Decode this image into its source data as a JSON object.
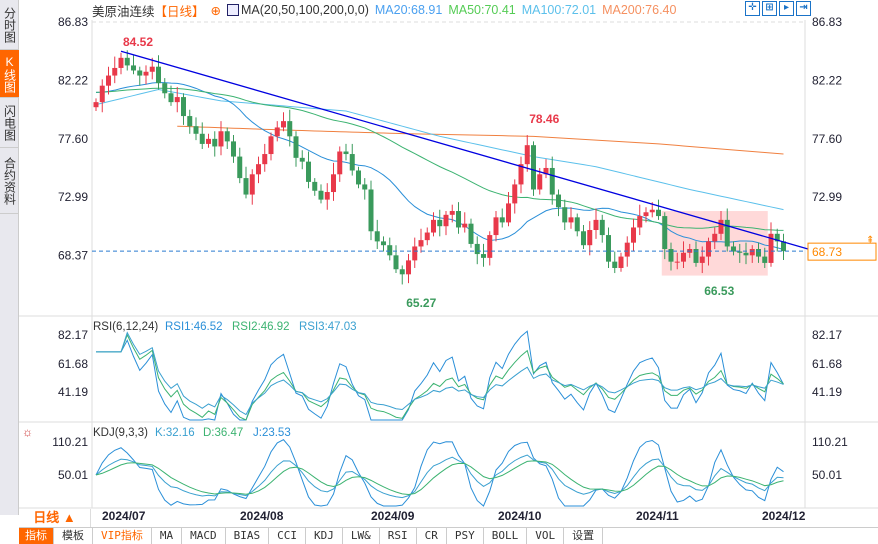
{
  "sidebar": {
    "items": [
      {
        "label": "分时图"
      },
      {
        "label": "K线图",
        "active": true
      },
      {
        "label": "闪电图"
      },
      {
        "label": "合约资料"
      }
    ]
  },
  "header": {
    "title": "美原油连续",
    "period_tag": "【日线】",
    "indicator": "MA(20,50,100,200,0,0)",
    "ma20": "MA20:68.91",
    "ma50": "MA50:70.41",
    "ma100": "MA100:72.01",
    "ma200": "MA200:76.40"
  },
  "colors": {
    "up": "#e8394a",
    "down": "#3a9a5c",
    "ma20": "#2a8fd8",
    "ma50": "#3cb371",
    "ma100": "#5bc0eb",
    "ma200": "#f08040",
    "trend": "#0000e0"
  },
  "price_axis": [
    "86.83",
    "82.22",
    "77.60",
    "72.99",
    "68.37"
  ],
  "current_price": "68.73",
  "annotations": {
    "high": "84.52",
    "oct_high": "78.46",
    "low": "65.27",
    "recent_low": "66.53"
  },
  "rsi": {
    "title": "RSI(6,12,24)",
    "rsi1": "RSI1:46.52",
    "rsi2": "RSI2:46.92",
    "rsi3": "RSI3:47.03",
    "axis": [
      "82.17",
      "61.68",
      "41.19"
    ]
  },
  "kdj": {
    "title": "KDJ(9,3,3)",
    "k": "K:32.16",
    "d": "D:36.47",
    "j": "J:23.53",
    "axis": [
      "110.21",
      "50.01"
    ]
  },
  "dates": [
    "2024/07",
    "2024/08",
    "2024/09",
    "2024/10",
    "2024/11",
    "2024/12"
  ],
  "period": "日线 ▲",
  "bottom_tabs": [
    "指标",
    "模板",
    "VIP指标",
    "MA",
    "MACD",
    "BIAS",
    "CCI",
    "KDJ",
    "LW&",
    "RSI",
    "CR",
    "PSY",
    "BOLL",
    "VOL",
    "设置"
  ],
  "chart_data": {
    "type": "candlestick",
    "closes": [
      80.5,
      81.8,
      82.6,
      83.2,
      84.0,
      83.4,
      83.0,
      82.6,
      82.9,
      83.3,
      82.0,
      81.2,
      80.5,
      80.9,
      79.4,
      78.6,
      78.0,
      77.2,
      77.6,
      77.0,
      78.2,
      77.4,
      76.2,
      74.5,
      73.2,
      74.8,
      75.6,
      76.4,
      77.8,
      78.5,
      79.0,
      77.8,
      76.1,
      75.8,
      74.2,
      73.5,
      72.8,
      73.4,
      74.8,
      76.6,
      76.4,
      75.1,
      74.0,
      73.6,
      70.3,
      69.5,
      69.2,
      68.4,
      67.3,
      66.9,
      68.0,
      69.1,
      69.6,
      70.2,
      71.2,
      70.7,
      71.6,
      71.9,
      70.6,
      70.9,
      69.3,
      68.5,
      68.2,
      70.0,
      71.4,
      71.0,
      72.5,
      74.0,
      75.6,
      77.1,
      73.6,
      74.8,
      75.3,
      73.2,
      72.2,
      71.0,
      71.4,
      70.3,
      69.2,
      70.4,
      71.2,
      70.0,
      67.9,
      67.4,
      68.3,
      69.4,
      70.6,
      71.5,
      71.8,
      72.0,
      71.5,
      68.9,
      67.9,
      67.9,
      68.6,
      68.9,
      67.8,
      68.3,
      69.5,
      70.1,
      71.2,
      69.1,
      68.7,
      68.6,
      68.4,
      68.9,
      68.3,
      67.8,
      70.1,
      69.5,
      68.73
    ],
    "ma100": [
      [
        0,
        80.3
      ],
      [
        10,
        81.5
      ],
      [
        20,
        80.6
      ],
      [
        40,
        79.8
      ],
      [
        55,
        77.8
      ],
      [
        70,
        76.2
      ],
      [
        80,
        75.4
      ],
      [
        95,
        73.6
      ],
      [
        110,
        72.01
      ]
    ],
    "ma200": [
      [
        13,
        78.6
      ],
      [
        30,
        78.3
      ],
      [
        50,
        78.0
      ],
      [
        70,
        77.8
      ],
      [
        90,
        77.2
      ],
      [
        110,
        76.4
      ]
    ],
    "y_range": [
      64,
      87.5
    ]
  }
}
